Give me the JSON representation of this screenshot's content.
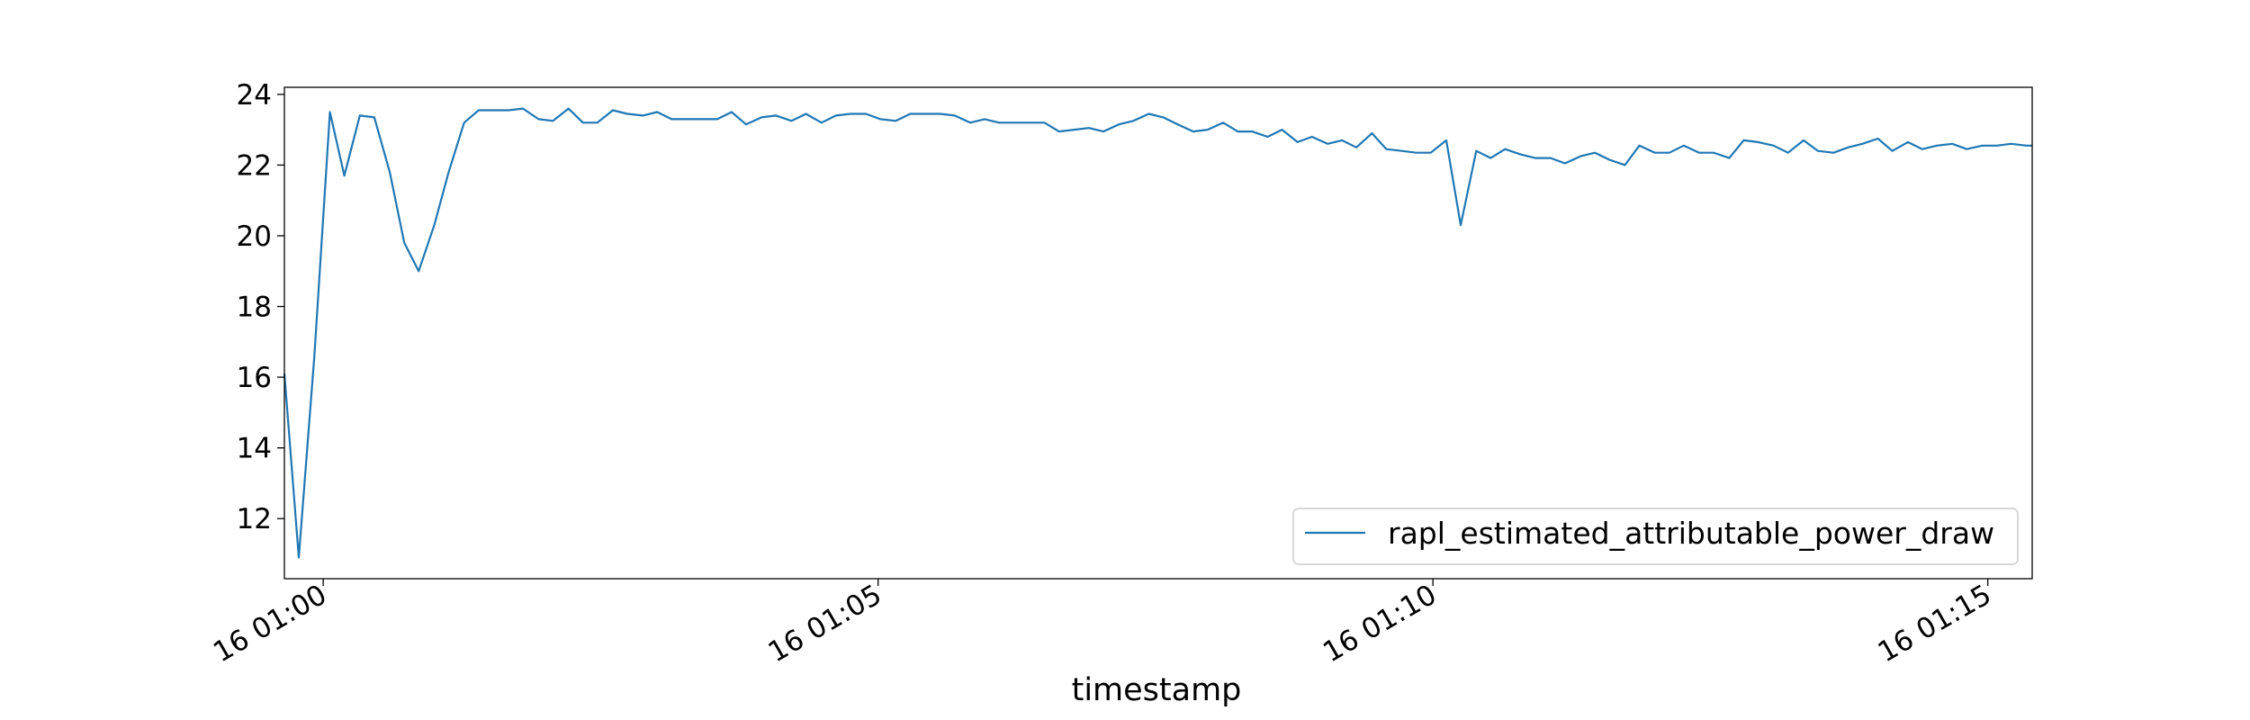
{
  "chart_data": {
    "type": "line",
    "title": "",
    "xlabel": "timestamp",
    "ylabel": "",
    "x_unit": "minutes after 16 01:00",
    "xlim": [
      -0.35,
      15.4
    ],
    "ylim": [
      10.3,
      24.2
    ],
    "grid": false,
    "legend_position": "bottom-right",
    "xticks": [
      {
        "value": 0,
        "label": "16 01:00"
      },
      {
        "value": 5,
        "label": "16 01:05"
      },
      {
        "value": 10,
        "label": "16 01:10"
      },
      {
        "value": 15,
        "label": "16 01:15"
      }
    ],
    "yticks": [
      {
        "value": 12,
        "label": "12"
      },
      {
        "value": 14,
        "label": "14"
      },
      {
        "value": 16,
        "label": "16"
      },
      {
        "value": 18,
        "label": "18"
      },
      {
        "value": 20,
        "label": "20"
      },
      {
        "value": 22,
        "label": "22"
      },
      {
        "value": 24,
        "label": "24"
      }
    ],
    "series": [
      {
        "name": "rapl_estimated_attributable_power_draw",
        "color": "#1f77b4",
        "x": [
          -0.35,
          -0.22,
          -0.08,
          0.06,
          0.19,
          0.33,
          0.46,
          0.6,
          0.73,
          0.86,
          1.0,
          1.13,
          1.27,
          1.4,
          1.53,
          1.67,
          1.8,
          1.94,
          2.07,
          2.21,
          2.34,
          2.47,
          2.61,
          2.74,
          2.88,
          3.01,
          3.14,
          3.28,
          3.41,
          3.55,
          3.68,
          3.81,
          3.95,
          4.08,
          4.22,
          4.35,
          4.49,
          4.62,
          4.75,
          4.89,
          5.02,
          5.16,
          5.29,
          5.42,
          5.56,
          5.69,
          5.83,
          5.96,
          6.09,
          6.23,
          6.36,
          6.5,
          6.63,
          6.77,
          6.9,
          7.03,
          7.17,
          7.3,
          7.44,
          7.57,
          7.7,
          7.84,
          7.97,
          8.11,
          8.24,
          8.37,
          8.51,
          8.64,
          8.78,
          8.91,
          9.05,
          9.18,
          9.31,
          9.45,
          9.58,
          9.72,
          9.85,
          9.98,
          10.12,
          10.25,
          10.39,
          10.52,
          10.65,
          10.79,
          10.92,
          11.06,
          11.19,
          11.33,
          11.46,
          11.59,
          11.73,
          11.86,
          12.0,
          12.13,
          12.26,
          12.4,
          12.53,
          12.67,
          12.8,
          12.93,
          13.07,
          13.2,
          13.34,
          13.47,
          13.61,
          13.74,
          13.87,
          14.01,
          14.14,
          14.28,
          14.41,
          14.54,
          14.68,
          14.81,
          14.95,
          15.08,
          15.21,
          15.35,
          15.4
        ],
        "values": [
          16.1,
          10.9,
          16.6,
          23.5,
          21.7,
          23.4,
          23.35,
          21.8,
          19.8,
          19.0,
          20.3,
          21.8,
          23.2,
          23.55,
          23.55,
          23.55,
          23.6,
          23.3,
          23.25,
          23.6,
          23.2,
          23.2,
          23.55,
          23.45,
          23.4,
          23.5,
          23.3,
          23.3,
          23.3,
          23.3,
          23.5,
          23.15,
          23.35,
          23.4,
          23.25,
          23.45,
          23.2,
          23.4,
          23.45,
          23.45,
          23.3,
          23.25,
          23.45,
          23.45,
          23.45,
          23.4,
          23.2,
          23.3,
          23.2,
          23.2,
          23.2,
          23.2,
          22.95,
          23.0,
          23.05,
          22.95,
          23.15,
          23.25,
          23.45,
          23.35,
          23.15,
          22.95,
          23.0,
          23.2,
          22.95,
          22.95,
          22.8,
          23.0,
          22.65,
          22.8,
          22.6,
          22.7,
          22.5,
          22.9,
          22.45,
          22.4,
          22.35,
          22.35,
          22.7,
          20.3,
          22.4,
          22.2,
          22.45,
          22.3,
          22.2,
          22.2,
          22.05,
          22.25,
          22.35,
          22.15,
          22.0,
          22.55,
          22.35,
          22.35,
          22.55,
          22.35,
          22.35,
          22.2,
          22.7,
          22.65,
          22.55,
          22.35,
          22.7,
          22.4,
          22.35,
          22.5,
          22.6,
          22.75,
          22.4,
          22.65,
          22.45,
          22.55,
          22.6,
          22.45,
          22.55,
          22.55,
          22.6,
          22.55,
          22.55
        ]
      }
    ]
  }
}
